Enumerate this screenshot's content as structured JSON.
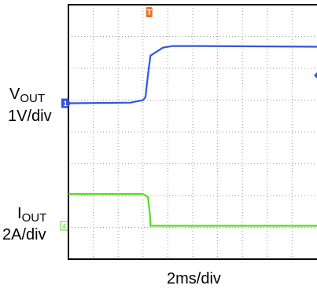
{
  "chart_data": {
    "type": "line",
    "x_unit_per_div": "2ms/div",
    "divisions": {
      "x": 10,
      "y": 8
    },
    "grid": true,
    "trigger_marker": {
      "label": "T",
      "color": "#e8722a",
      "x_div": 3.25
    },
    "series": [
      {
        "name": "VOUT",
        "color": "#3355dd",
        "scale": "1V/div",
        "marker_label": "1",
        "ground_div": 4.9,
        "points": [
          [
            0,
            0.0
          ],
          [
            2.5,
            0.02
          ],
          [
            3.0,
            0.1
          ],
          [
            3.1,
            0.2
          ],
          [
            3.2,
            0.9
          ],
          [
            3.3,
            1.5
          ],
          [
            3.5,
            1.6
          ],
          [
            3.8,
            1.75
          ],
          [
            4.2,
            1.8
          ],
          [
            5.0,
            1.8
          ],
          [
            10.0,
            1.78
          ]
        ]
      },
      {
        "name": "IOUT",
        "color": "#55dd22",
        "scale": "2A/div",
        "marker_label": "4",
        "ground_div": 1.05,
        "points": [
          [
            0,
            1.0
          ],
          [
            3.0,
            1.0
          ],
          [
            3.2,
            0.9
          ],
          [
            3.28,
            0.35
          ],
          [
            3.3,
            0.0
          ],
          [
            10.0,
            0.0
          ]
        ]
      }
    ]
  },
  "labels": {
    "vout_main": "V",
    "vout_sub": "OUT",
    "vout_scale": "1V/div",
    "iout_main": "I",
    "iout_sub": "OUT",
    "iout_scale": "2A/div",
    "time_scale": "2ms/div",
    "trigger": "T",
    "ch1": "1",
    "ch4": "4"
  }
}
